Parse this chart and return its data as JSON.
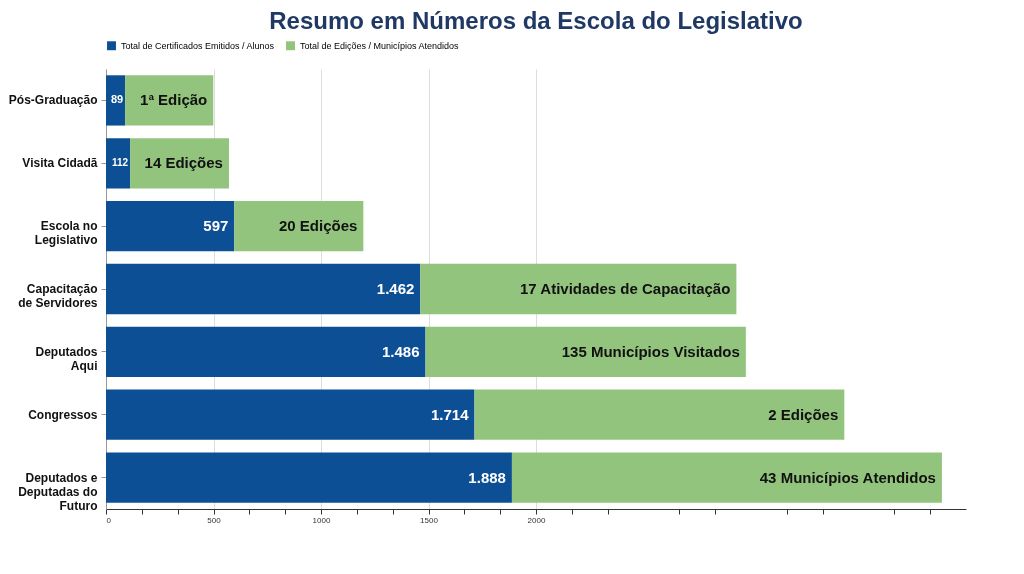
{
  "chart_data": {
    "type": "bar",
    "orientation": "horizontal",
    "stacked": true,
    "title": "Resumo em Números da Escola do Legislativo",
    "categories": [
      "Pós-Graduação",
      "Visita Cidadã",
      "Escola no Legislativo",
      "Capacitação de Servidores",
      "Deputados Aqui",
      "Congressos",
      "Deputados e Deputadas do Futuro"
    ],
    "series": [
      {
        "name": "Total de Certificados Emitidos / Alunos",
        "color": "#0d4f94",
        "values": [
          89,
          112,
          597,
          1462,
          1486,
          1714,
          1888
        ],
        "value_labels": [
          "89",
          "112",
          "597",
          "1.462",
          "1.486",
          "1.714",
          "1.888"
        ]
      },
      {
        "name": "Total de Edições / Municípios Atendidos",
        "color": "#93c47d",
        "values": [
          410,
          460,
          600,
          1470,
          1490,
          1720,
          2000
        ]
      }
    ],
    "annotations": [
      {
        "text": "1ª Edição",
        "x": 499,
        "y": "Pós-Graduação"
      },
      {
        "text": "14 Edições",
        "x": 572,
        "y": "Visita Cidadã"
      },
      {
        "text": "20 Edições",
        "x": 1197,
        "y": "Escola no Legislativo"
      },
      {
        "text": "17 Atividades de Capacitação",
        "x": 2932,
        "y": "Capacitação de Servidores"
      },
      {
        "text": "135 Municípios Visitados",
        "x": 2976,
        "y": "Deputados Aqui"
      },
      {
        "text": "2 Edições",
        "x": 3434,
        "y": "Congressos"
      },
      {
        "text": "43 Municípios Atendidos",
        "x": 3888,
        "y": "Deputados e Deputadas do Futuro"
      }
    ],
    "xlim": [
      0,
      4000
    ],
    "xticks": [
      0,
      {
        "value": 166.7,
        "label": null
      },
      {
        "value": 333.3,
        "label": null
      },
      500,
      {
        "value": 666.7,
        "label": null
      },
      {
        "value": 833.3,
        "label": null
      },
      1000,
      {
        "value": 1166.7,
        "label": null
      },
      {
        "value": 1333.3,
        "label": null
      },
      1500,
      {
        "value": 1666.7,
        "label": null
      },
      {
        "value": 1833.3,
        "label": null
      },
      2000,
      {
        "value": 2166.7,
        "label": null
      },
      {
        "value": 2333.3,
        "label": null
      },
      {
        "value": 2666.7,
        "label": null
      },
      {
        "value": 2833.3,
        "label": null
      },
      {
        "value": 3166.7,
        "label": null
      },
      {
        "value": 3333.3,
        "label": null
      },
      {
        "value": 3666.7,
        "label": null
      },
      {
        "value": 3833.3,
        "label": null
      }
    ],
    "grid": "x",
    "legend": "top"
  }
}
